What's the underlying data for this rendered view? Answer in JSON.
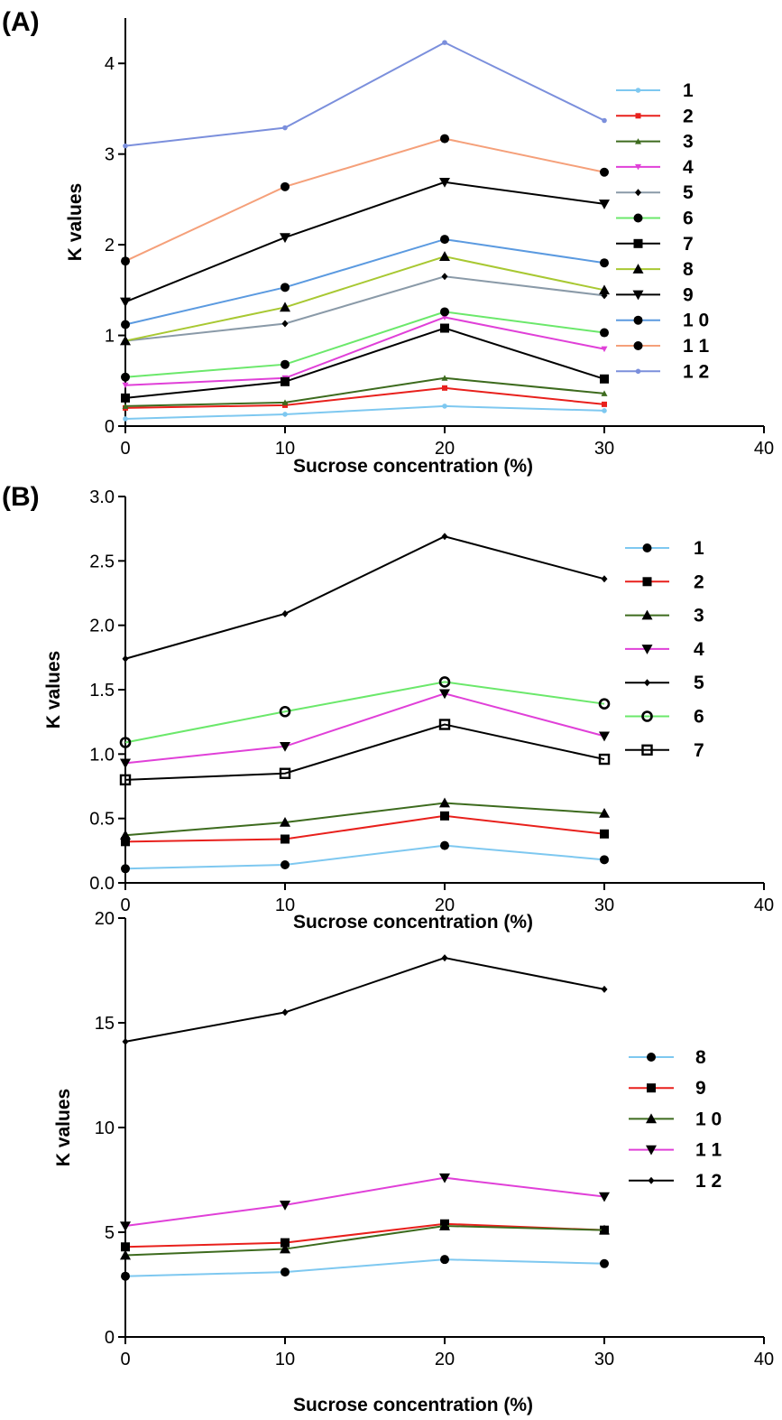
{
  "panels": [
    {
      "label": "(A)"
    },
    {
      "label": "(B)"
    },
    {
      "label": ""
    }
  ],
  "chart_data": [
    {
      "type": "line",
      "panel_label": "(A)",
      "xlabel": "Sucrose concentration (%)",
      "ylabel": "K values",
      "xlim": [
        0,
        40
      ],
      "ylim": [
        0,
        4.5
      ],
      "xticks": [
        "0",
        "10",
        "20",
        "30",
        "40"
      ],
      "yticks": [
        "0",
        "1",
        "2",
        "3",
        "4"
      ],
      "ytick_values": [
        0,
        1,
        2,
        3,
        4
      ],
      "grid": false,
      "legend_position": "right",
      "x": [
        0,
        10,
        20,
        30
      ],
      "series": [
        {
          "name": "1",
          "color": "#7ec8f0",
          "marker": "dot",
          "values": [
            0.08,
            0.13,
            0.22,
            0.17
          ]
        },
        {
          "name": "2",
          "color": "#e8201c",
          "marker": "small-square",
          "values": [
            0.2,
            0.23,
            0.42,
            0.24
          ]
        },
        {
          "name": "3",
          "color": "#3d6b1e",
          "marker": "small-triangle",
          "values": [
            0.22,
            0.26,
            0.53,
            0.36
          ]
        },
        {
          "name": "4",
          "color": "#e040d8",
          "marker": "small-triangle-down",
          "values": [
            0.45,
            0.53,
            1.2,
            0.85
          ]
        },
        {
          "name": "5",
          "color": "#8a9aa8",
          "marker": "small-diamond",
          "values": [
            0.94,
            1.13,
            1.65,
            1.44
          ]
        },
        {
          "name": "6",
          "color": "#6be86b",
          "marker": "circle",
          "values": [
            0.54,
            0.68,
            1.26,
            1.03
          ]
        },
        {
          "name": "7",
          "color": "#000000",
          "marker": "square",
          "values": [
            0.31,
            0.49,
            1.08,
            0.52
          ]
        },
        {
          "name": "8",
          "color": "#a8c832",
          "marker": "triangle",
          "values": [
            0.94,
            1.31,
            1.87,
            1.5
          ]
        },
        {
          "name": "9",
          "color": "#000000",
          "marker": "triangle-down",
          "values": [
            1.37,
            2.08,
            2.69,
            2.45
          ]
        },
        {
          "name": "1 0",
          "color": "#5b9ae0",
          "marker": "circle",
          "values": [
            1.12,
            1.53,
            2.06,
            1.8
          ]
        },
        {
          "name": "1 1",
          "color": "#f5a07a",
          "marker": "circle",
          "values": [
            1.82,
            2.64,
            3.17,
            2.8
          ]
        },
        {
          "name": "1 2",
          "color": "#7b8fdc",
          "marker": "dot",
          "values": [
            3.09,
            3.29,
            4.23,
            3.37
          ]
        }
      ]
    },
    {
      "type": "line",
      "panel_label": "(B)",
      "xlabel": "Sucrose concentration (%)",
      "ylabel": "K values",
      "xlim": [
        0,
        40
      ],
      "ylim": [
        0,
        3.0
      ],
      "xticks": [
        "0",
        "10",
        "20",
        "30",
        "40"
      ],
      "yticks": [
        "0.0",
        "0.5",
        "1.0",
        "1.5",
        "2.0",
        "2.5",
        "3.0"
      ],
      "ytick_values": [
        0,
        0.5,
        1.0,
        1.5,
        2.0,
        2.5,
        3.0
      ],
      "grid": false,
      "legend_position": "right",
      "x": [
        0,
        10,
        20,
        30
      ],
      "series": [
        {
          "name": "1",
          "color": "#7ec8f0",
          "marker": "circle",
          "values": [
            0.11,
            0.14,
            0.29,
            0.18
          ]
        },
        {
          "name": "2",
          "color": "#e8201c",
          "marker": "square",
          "values": [
            0.32,
            0.34,
            0.52,
            0.38
          ]
        },
        {
          "name": "3",
          "color": "#3d6b1e",
          "marker": "triangle",
          "values": [
            0.37,
            0.47,
            0.62,
            0.54
          ]
        },
        {
          "name": "4",
          "color": "#e040d8",
          "marker": "triangle-down",
          "values": [
            0.93,
            1.06,
            1.47,
            1.14
          ]
        },
        {
          "name": "5",
          "color": "#000000",
          "marker": "small-diamond",
          "values": [
            1.74,
            2.09,
            2.69,
            2.36
          ]
        },
        {
          "name": "6",
          "color": "#6be86b",
          "marker": "ring",
          "values": [
            1.09,
            1.33,
            1.56,
            1.39
          ]
        },
        {
          "name": "7",
          "color": "#000000",
          "marker": "open-square",
          "values": [
            0.8,
            0.85,
            1.23,
            0.96
          ]
        }
      ]
    },
    {
      "type": "line",
      "panel_label": "",
      "xlabel": "Sucrose concentration (%)",
      "ylabel": "K values",
      "xlim": [
        0,
        40
      ],
      "ylim": [
        0,
        20
      ],
      "xticks": [
        "0",
        "10",
        "20",
        "30",
        "40"
      ],
      "yticks": [
        "0",
        "5",
        "10",
        "15",
        "20"
      ],
      "ytick_values": [
        0,
        5,
        10,
        15,
        20
      ],
      "grid": false,
      "legend_position": "right",
      "x": [
        0,
        10,
        20,
        30
      ],
      "series": [
        {
          "name": "8",
          "color": "#7ec8f0",
          "marker": "circle",
          "values": [
            2.9,
            3.1,
            3.7,
            3.5
          ]
        },
        {
          "name": "9",
          "color": "#e8201c",
          "marker": "square",
          "values": [
            4.3,
            4.5,
            5.4,
            5.1
          ]
        },
        {
          "name": "1 0",
          "color": "#3d6b1e",
          "marker": "triangle",
          "values": [
            3.9,
            4.2,
            5.3,
            5.1
          ]
        },
        {
          "name": "1 1",
          "color": "#e040d8",
          "marker": "triangle-down",
          "values": [
            5.3,
            6.3,
            7.6,
            6.7
          ]
        },
        {
          "name": "1 2",
          "color": "#000000",
          "marker": "small-diamond",
          "values": [
            14.1,
            15.5,
            18.1,
            16.6
          ]
        }
      ]
    }
  ]
}
